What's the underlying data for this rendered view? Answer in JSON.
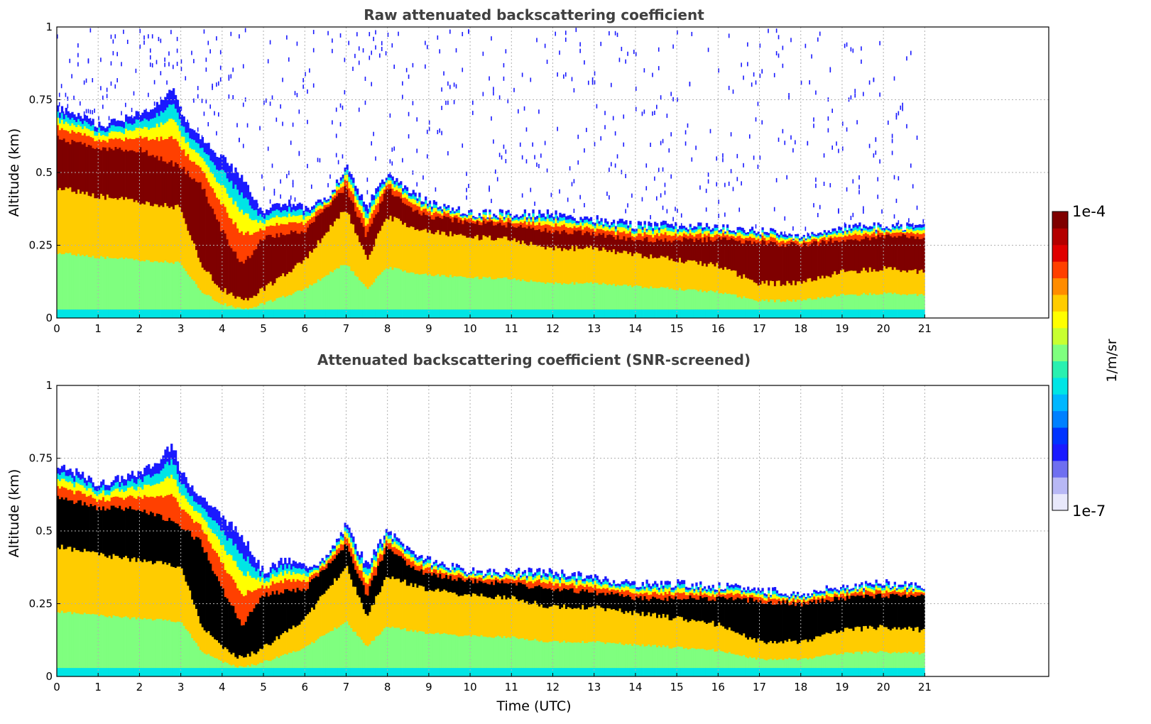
{
  "chart_data": [
    {
      "type": "heatmap",
      "title": "Raw attenuated backscattering coefficient",
      "xlabel": "",
      "ylabel": "Altitude (km)",
      "xlim": [
        0,
        24
      ],
      "ylim": [
        0,
        1
      ],
      "xticks": [
        "0",
        "1",
        "2",
        "3",
        "4",
        "5",
        "6",
        "7",
        "8",
        "9",
        "10",
        "11",
        "12",
        "13",
        "14",
        "15",
        "16",
        "17",
        "18",
        "19",
        "20",
        "21"
      ],
      "yticks": [
        "0",
        "0.25",
        "0.5",
        "0.75",
        "1"
      ],
      "grid": true,
      "data_extent_hours": [
        0,
        21
      ],
      "screened": false,
      "layer_top_km": [
        [
          0,
          0.72
        ],
        [
          0.5,
          0.7
        ],
        [
          1,
          0.66
        ],
        [
          1.5,
          0.68
        ],
        [
          2,
          0.7
        ],
        [
          2.5,
          0.74
        ],
        [
          2.8,
          0.8
        ],
        [
          3,
          0.7
        ],
        [
          3.5,
          0.62
        ],
        [
          4,
          0.55
        ],
        [
          4.5,
          0.48
        ],
        [
          5,
          0.36
        ],
        [
          5.5,
          0.4
        ],
        [
          6,
          0.38
        ],
        [
          6.5,
          0.4
        ],
        [
          7,
          0.52
        ],
        [
          7.5,
          0.38
        ],
        [
          8,
          0.5
        ],
        [
          8.5,
          0.44
        ],
        [
          9,
          0.4
        ],
        [
          9.5,
          0.38
        ],
        [
          10,
          0.36
        ],
        [
          11,
          0.36
        ],
        [
          12,
          0.36
        ],
        [
          13,
          0.34
        ],
        [
          14,
          0.32
        ],
        [
          15,
          0.32
        ],
        [
          16,
          0.31
        ],
        [
          17,
          0.3
        ],
        [
          18,
          0.28
        ],
        [
          19,
          0.31
        ],
        [
          20,
          0.32
        ],
        [
          21,
          0.31
        ]
      ],
      "core_top_km": [
        [
          0,
          0.62
        ],
        [
          1,
          0.58
        ],
        [
          2,
          0.58
        ],
        [
          3,
          0.52
        ],
        [
          3.5,
          0.46
        ],
        [
          4,
          0.3
        ],
        [
          4.5,
          0.18
        ],
        [
          5,
          0.28
        ],
        [
          6,
          0.3
        ],
        [
          7,
          0.45
        ],
        [
          7.5,
          0.28
        ],
        [
          8,
          0.45
        ],
        [
          8.5,
          0.38
        ],
        [
          9,
          0.35
        ],
        [
          10,
          0.33
        ],
        [
          11,
          0.32
        ],
        [
          12,
          0.3
        ],
        [
          13,
          0.29
        ],
        [
          14,
          0.27
        ],
        [
          15,
          0.27
        ],
        [
          16,
          0.27
        ],
        [
          17,
          0.26
        ],
        [
          18,
          0.25
        ],
        [
          19,
          0.27
        ],
        [
          20,
          0.28
        ],
        [
          21,
          0.28
        ]
      ],
      "core_bottom_km": [
        [
          0,
          0.45
        ],
        [
          1,
          0.42
        ],
        [
          2,
          0.4
        ],
        [
          3,
          0.38
        ],
        [
          3.5,
          0.18
        ],
        [
          4,
          0.1
        ],
        [
          4.5,
          0.06
        ],
        [
          5,
          0.1
        ],
        [
          6,
          0.2
        ],
        [
          7,
          0.38
        ],
        [
          7.5,
          0.2
        ],
        [
          8,
          0.35
        ],
        [
          8.5,
          0.32
        ],
        [
          9,
          0.3
        ],
        [
          10,
          0.28
        ],
        [
          11,
          0.27
        ],
        [
          12,
          0.24
        ],
        [
          13,
          0.24
        ],
        [
          14,
          0.22
        ],
        [
          15,
          0.2
        ],
        [
          16,
          0.18
        ],
        [
          17,
          0.12
        ],
        [
          18,
          0.12
        ],
        [
          19,
          0.16
        ],
        [
          20,
          0.17
        ],
        [
          21,
          0.16
        ]
      ]
    },
    {
      "type": "heatmap",
      "title": "Attenuated backscattering coefficient (SNR-screened)",
      "xlabel": "Time (UTC)",
      "ylabel": "Altitude (km)",
      "xlim": [
        0,
        24
      ],
      "ylim": [
        0,
        1
      ],
      "xticks": [
        "0",
        "1",
        "2",
        "3",
        "4",
        "5",
        "6",
        "7",
        "8",
        "9",
        "10",
        "11",
        "12",
        "13",
        "14",
        "15",
        "16",
        "17",
        "18",
        "19",
        "20",
        "21"
      ],
      "yticks": [
        "0",
        "0.25",
        "0.5",
        "0.75",
        "1"
      ],
      "grid": true,
      "data_extent_hours": [
        0,
        21
      ],
      "screened": true
    }
  ],
  "colorbar": {
    "label": "1/m/sr",
    "max_label": "1e-4",
    "min_label": "1e-7",
    "colors": [
      "#e8e8fb",
      "#b8b8f5",
      "#6f6ff0",
      "#1a1aff",
      "#0033ff",
      "#0080ff",
      "#00b7ff",
      "#00e5e5",
      "#2af0b0",
      "#7fff7f",
      "#c8ff30",
      "#ffff00",
      "#ffcc00",
      "#ff8c00",
      "#ff4000",
      "#e00000",
      "#b40000",
      "#7f0000"
    ]
  }
}
